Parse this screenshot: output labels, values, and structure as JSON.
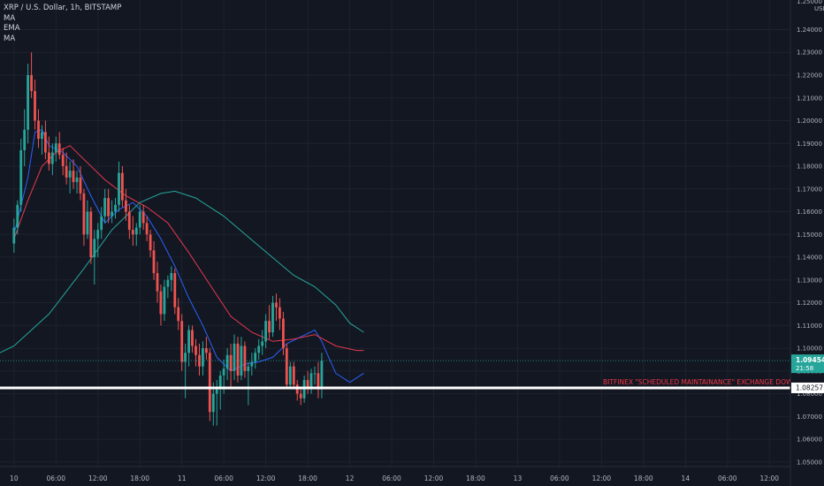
{
  "legend": {
    "title": "XRP / U.S. Dollar, 1h, BITSTAMP",
    "items": [
      "MA",
      "EMA",
      "MA"
    ]
  },
  "colors": {
    "background": "#131722",
    "up": "#26a69a",
    "down": "#ef5350",
    "ma_fast": "#2962ff",
    "ema": "#e8384f",
    "ma_slow": "#26a69a",
    "support": "#ffffff",
    "annotation": "#f23645"
  },
  "chart_data": {
    "type": "candlestick",
    "symbol": "XRP / U.S. Dollar",
    "interval": "1h",
    "exchange": "BITSTAMP",
    "y_axis": {
      "unit": "USD",
      "ticks": [
        "1.24000",
        "1.23000",
        "1.22000",
        "1.21000",
        "1.20000",
        "1.19000",
        "1.18000",
        "1.17000",
        "1.16000",
        "1.15000",
        "1.14000",
        "1.13000",
        "1.12000",
        "1.11000",
        "1.10000",
        "1.09000",
        "1.08000",
        "1.07000",
        "1.06000",
        "1.05000"
      ],
      "top_partial_label": "1.25000",
      "range": [
        1.048,
        1.253
      ]
    },
    "x_axis": {
      "bar_range": [
        -4,
        222
      ],
      "ticks": [
        {
          "i": 0,
          "label": "10"
        },
        {
          "i": 12,
          "label": "06:00"
        },
        {
          "i": 24,
          "label": "12:00"
        },
        {
          "i": 36,
          "label": "18:00"
        },
        {
          "i": 48,
          "label": "11"
        },
        {
          "i": 60,
          "label": "06:00"
        },
        {
          "i": 72,
          "label": "12:00"
        },
        {
          "i": 84,
          "label": "18:00"
        },
        {
          "i": 96,
          "label": "12"
        },
        {
          "i": 108,
          "label": "06:00"
        },
        {
          "i": 120,
          "label": "12:00"
        },
        {
          "i": 132,
          "label": "18:00"
        },
        {
          "i": 144,
          "label": "13"
        },
        {
          "i": 156,
          "label": "06:00"
        },
        {
          "i": 168,
          "label": "12:00"
        },
        {
          "i": 180,
          "label": "18:00"
        },
        {
          "i": 192,
          "label": "14"
        },
        {
          "i": 204,
          "label": "06:00"
        },
        {
          "i": 216,
          "label": "12:00"
        }
      ]
    },
    "candles": [
      {
        "o": 1.146,
        "h": 1.157,
        "l": 1.142,
        "c": 1.153
      },
      {
        "o": 1.153,
        "h": 1.165,
        "l": 1.15,
        "c": 1.163
      },
      {
        "o": 1.163,
        "h": 1.192,
        "l": 1.16,
        "c": 1.187
      },
      {
        "o": 1.187,
        "h": 1.205,
        "l": 1.18,
        "c": 1.196
      },
      {
        "o": 1.196,
        "h": 1.225,
        "l": 1.19,
        "c": 1.22
      },
      {
        "o": 1.22,
        "h": 1.23,
        "l": 1.21,
        "c": 1.213
      },
      {
        "o": 1.213,
        "h": 1.218,
        "l": 1.196,
        "c": 1.2
      },
      {
        "o": 1.2,
        "h": 1.205,
        "l": 1.188,
        "c": 1.192
      },
      {
        "o": 1.192,
        "h": 1.198,
        "l": 1.185,
        "c": 1.195
      },
      {
        "o": 1.195,
        "h": 1.2,
        "l": 1.183,
        "c": 1.186
      },
      {
        "o": 1.186,
        "h": 1.193,
        "l": 1.178,
        "c": 1.181
      },
      {
        "o": 1.181,
        "h": 1.19,
        "l": 1.176,
        "c": 1.186
      },
      {
        "o": 1.186,
        "h": 1.193,
        "l": 1.182,
        "c": 1.19
      },
      {
        "o": 1.19,
        "h": 1.195,
        "l": 1.183,
        "c": 1.185
      },
      {
        "o": 1.185,
        "h": 1.188,
        "l": 1.176,
        "c": 1.18
      },
      {
        "o": 1.18,
        "h": 1.186,
        "l": 1.172,
        "c": 1.175
      },
      {
        "o": 1.175,
        "h": 1.182,
        "l": 1.168,
        "c": 1.178
      },
      {
        "o": 1.178,
        "h": 1.183,
        "l": 1.17,
        "c": 1.173
      },
      {
        "o": 1.173,
        "h": 1.178,
        "l": 1.168,
        "c": 1.175
      },
      {
        "o": 1.175,
        "h": 1.18,
        "l": 1.165,
        "c": 1.168
      },
      {
        "o": 1.168,
        "h": 1.17,
        "l": 1.145,
        "c": 1.15
      },
      {
        "o": 1.15,
        "h": 1.165,
        "l": 1.148,
        "c": 1.16
      },
      {
        "o": 1.16,
        "h": 1.162,
        "l": 1.137,
        "c": 1.14
      },
      {
        "o": 1.14,
        "h": 1.152,
        "l": 1.128,
        "c": 1.148
      },
      {
        "o": 1.148,
        "h": 1.155,
        "l": 1.14,
        "c": 1.152
      },
      {
        "o": 1.152,
        "h": 1.162,
        "l": 1.148,
        "c": 1.158
      },
      {
        "o": 1.158,
        "h": 1.17,
        "l": 1.155,
        "c": 1.166
      },
      {
        "o": 1.166,
        "h": 1.17,
        "l": 1.155,
        "c": 1.158
      },
      {
        "o": 1.158,
        "h": 1.165,
        "l": 1.155,
        "c": 1.16
      },
      {
        "o": 1.16,
        "h": 1.166,
        "l": 1.157,
        "c": 1.163
      },
      {
        "o": 1.163,
        "h": 1.182,
        "l": 1.16,
        "c": 1.177
      },
      {
        "o": 1.177,
        "h": 1.18,
        "l": 1.162,
        "c": 1.165
      },
      {
        "o": 1.165,
        "h": 1.17,
        "l": 1.156,
        "c": 1.16
      },
      {
        "o": 1.16,
        "h": 1.163,
        "l": 1.148,
        "c": 1.152
      },
      {
        "o": 1.152,
        "h": 1.158,
        "l": 1.145,
        "c": 1.15
      },
      {
        "o": 1.15,
        "h": 1.155,
        "l": 1.145,
        "c": 1.153
      },
      {
        "o": 1.153,
        "h": 1.163,
        "l": 1.15,
        "c": 1.16
      },
      {
        "o": 1.16,
        "h": 1.163,
        "l": 1.152,
        "c": 1.155
      },
      {
        "o": 1.155,
        "h": 1.158,
        "l": 1.147,
        "c": 1.15
      },
      {
        "o": 1.15,
        "h": 1.152,
        "l": 1.14,
        "c": 1.143
      },
      {
        "o": 1.143,
        "h": 1.147,
        "l": 1.13,
        "c": 1.133
      },
      {
        "o": 1.133,
        "h": 1.138,
        "l": 1.12,
        "c": 1.125
      },
      {
        "o": 1.125,
        "h": 1.128,
        "l": 1.11,
        "c": 1.115
      },
      {
        "o": 1.115,
        "h": 1.13,
        "l": 1.112,
        "c": 1.127
      },
      {
        "o": 1.127,
        "h": 1.132,
        "l": 1.122,
        "c": 1.13
      },
      {
        "o": 1.13,
        "h": 1.136,
        "l": 1.125,
        "c": 1.133
      },
      {
        "o": 1.133,
        "h": 1.135,
        "l": 1.115,
        "c": 1.118
      },
      {
        "o": 1.118,
        "h": 1.122,
        "l": 1.108,
        "c": 1.112
      },
      {
        "o": 1.112,
        "h": 1.115,
        "l": 1.09,
        "c": 1.094
      },
      {
        "o": 1.094,
        "h": 1.102,
        "l": 1.078,
        "c": 1.098
      },
      {
        "o": 1.098,
        "h": 1.11,
        "l": 1.092,
        "c": 1.108
      },
      {
        "o": 1.108,
        "h": 1.11,
        "l": 1.098,
        "c": 1.101
      },
      {
        "o": 1.101,
        "h": 1.104,
        "l": 1.092,
        "c": 1.097
      },
      {
        "o": 1.097,
        "h": 1.102,
        "l": 1.088,
        "c": 1.092
      },
      {
        "o": 1.092,
        "h": 1.103,
        "l": 1.088,
        "c": 1.1
      },
      {
        "o": 1.1,
        "h": 1.105,
        "l": 1.095,
        "c": 1.098
      },
      {
        "o": 1.098,
        "h": 1.1,
        "l": 1.068,
        "c": 1.072
      },
      {
        "o": 1.072,
        "h": 1.085,
        "l": 1.066,
        "c": 1.08
      },
      {
        "o": 1.08,
        "h": 1.086,
        "l": 1.066,
        "c": 1.083
      },
      {
        "o": 1.083,
        "h": 1.09,
        "l": 1.073,
        "c": 1.088
      },
      {
        "o": 1.088,
        "h": 1.095,
        "l": 1.08,
        "c": 1.091
      },
      {
        "o": 1.091,
        "h": 1.1,
        "l": 1.086,
        "c": 1.097
      },
      {
        "o": 1.097,
        "h": 1.102,
        "l": 1.082,
        "c": 1.09
      },
      {
        "o": 1.09,
        "h": 1.106,
        "l": 1.086,
        "c": 1.102
      },
      {
        "o": 1.102,
        "h": 1.105,
        "l": 1.085,
        "c": 1.088
      },
      {
        "o": 1.088,
        "h": 1.105,
        "l": 1.086,
        "c": 1.101
      },
      {
        "o": 1.101,
        "h": 1.103,
        "l": 1.087,
        "c": 1.09
      },
      {
        "o": 1.09,
        "h": 1.094,
        "l": 1.075,
        "c": 1.092
      },
      {
        "o": 1.092,
        "h": 1.098,
        "l": 1.088,
        "c": 1.094
      },
      {
        "o": 1.094,
        "h": 1.1,
        "l": 1.091,
        "c": 1.098
      },
      {
        "o": 1.098,
        "h": 1.104,
        "l": 1.095,
        "c": 1.101
      },
      {
        "o": 1.101,
        "h": 1.108,
        "l": 1.097,
        "c": 1.103
      },
      {
        "o": 1.103,
        "h": 1.115,
        "l": 1.1,
        "c": 1.112
      },
      {
        "o": 1.112,
        "h": 1.119,
        "l": 1.104,
        "c": 1.107
      },
      {
        "o": 1.107,
        "h": 1.123,
        "l": 1.105,
        "c": 1.12
      },
      {
        "o": 1.12,
        "h": 1.124,
        "l": 1.112,
        "c": 1.118
      },
      {
        "o": 1.118,
        "h": 1.122,
        "l": 1.108,
        "c": 1.113
      },
      {
        "o": 1.113,
        "h": 1.116,
        "l": 1.097,
        "c": 1.1
      },
      {
        "o": 1.1,
        "h": 1.102,
        "l": 1.082,
        "c": 1.084
      },
      {
        "o": 1.084,
        "h": 1.094,
        "l": 1.082,
        "c": 1.092
      },
      {
        "o": 1.092,
        "h": 1.094,
        "l": 1.082,
        "c": 1.084
      },
      {
        "o": 1.084,
        "h": 1.086,
        "l": 1.077,
        "c": 1.08
      },
      {
        "o": 1.08,
        "h": 1.083,
        "l": 1.075,
        "c": 1.078
      },
      {
        "o": 1.078,
        "h": 1.088,
        "l": 1.076,
        "c": 1.086
      },
      {
        "o": 1.086,
        "h": 1.09,
        "l": 1.08,
        "c": 1.082
      },
      {
        "o": 1.082,
        "h": 1.091,
        "l": 1.08,
        "c": 1.089
      },
      {
        "o": 1.089,
        "h": 1.092,
        "l": 1.084,
        "c": 1.089
      },
      {
        "o": 1.089,
        "h": 1.094,
        "l": 1.078,
        "c": 1.082
      },
      {
        "o": 1.082,
        "h": 1.098,
        "l": 1.078,
        "c": 1.0945
      }
    ],
    "indicators": [
      {
        "name": "MA",
        "color": "#2962ff",
        "points": [
          [
            0,
            1.15
          ],
          [
            4,
            1.175
          ],
          [
            6,
            1.195
          ],
          [
            8,
            1.196
          ],
          [
            10,
            1.189
          ],
          [
            14,
            1.186
          ],
          [
            18,
            1.18
          ],
          [
            22,
            1.167
          ],
          [
            26,
            1.155
          ],
          [
            30,
            1.161
          ],
          [
            34,
            1.164
          ],
          [
            38,
            1.158
          ],
          [
            42,
            1.148
          ],
          [
            46,
            1.136
          ],
          [
            50,
            1.122
          ],
          [
            54,
            1.11
          ],
          [
            58,
            1.096
          ],
          [
            62,
            1.09
          ],
          [
            66,
            1.093
          ],
          [
            70,
            1.094
          ],
          [
            74,
            1.096
          ],
          [
            78,
            1.102
          ],
          [
            82,
            1.105
          ],
          [
            86,
            1.108
          ],
          [
            88,
            1.103
          ],
          [
            90,
            1.096
          ],
          [
            92,
            1.089
          ],
          [
            96,
            1.085
          ],
          [
            100,
            1.089
          ]
        ]
      },
      {
        "name": "EMA",
        "color": "#e8384f",
        "points": [
          [
            0,
            1.148
          ],
          [
            4,
            1.165
          ],
          [
            8,
            1.18
          ],
          [
            12,
            1.186
          ],
          [
            16,
            1.189
          ],
          [
            20,
            1.183
          ],
          [
            26,
            1.174
          ],
          [
            32,
            1.167
          ],
          [
            38,
            1.162
          ],
          [
            44,
            1.155
          ],
          [
            50,
            1.142
          ],
          [
            56,
            1.128
          ],
          [
            62,
            1.114
          ],
          [
            68,
            1.107
          ],
          [
            74,
            1.103
          ],
          [
            80,
            1.104
          ],
          [
            86,
            1.106
          ],
          [
            92,
            1.101
          ],
          [
            98,
            1.099
          ],
          [
            100,
            1.099
          ]
        ]
      },
      {
        "name": "MA",
        "color": "#26a69a",
        "points": [
          [
            -4,
            1.098
          ],
          [
            0,
            1.101
          ],
          [
            10,
            1.115
          ],
          [
            20,
            1.135
          ],
          [
            28,
            1.152
          ],
          [
            36,
            1.164
          ],
          [
            42,
            1.168
          ],
          [
            46,
            1.169
          ],
          [
            52,
            1.166
          ],
          [
            60,
            1.158
          ],
          [
            70,
            1.145
          ],
          [
            80,
            1.132
          ],
          [
            86,
            1.127
          ],
          [
            92,
            1.119
          ],
          [
            96,
            1.111
          ],
          [
            100,
            1.107
          ]
        ]
      }
    ],
    "last_price": {
      "value": 1.09454,
      "label": "1.09454",
      "countdown": "21:58"
    },
    "support_line": {
      "value": 1.08257,
      "label": "1.08257"
    },
    "annotation": "BITFINEX \"SCHEDULED MAINTAINANCE\" EXCHANGE DOWN"
  }
}
